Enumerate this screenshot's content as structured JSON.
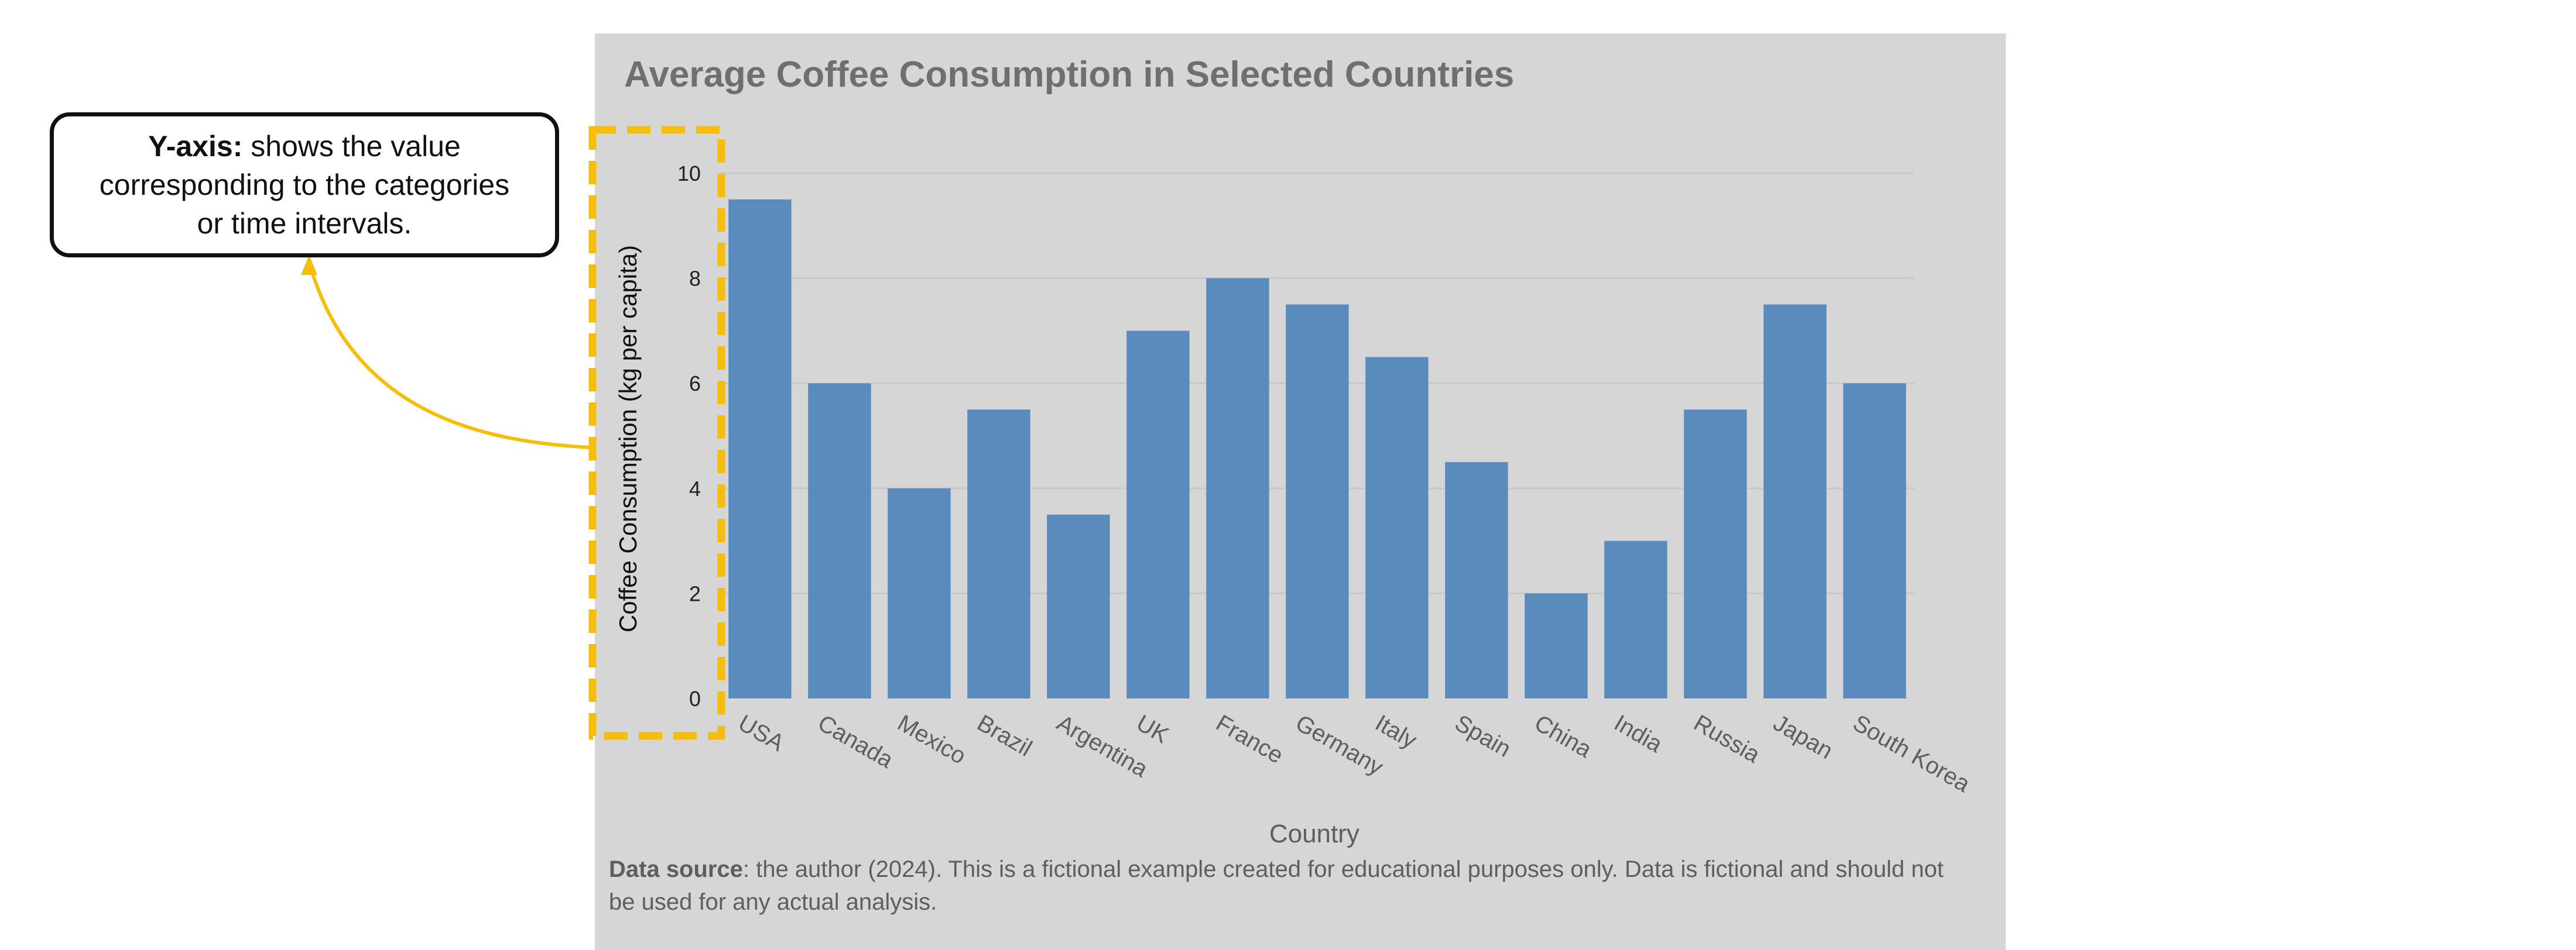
{
  "chart_data": {
    "type": "bar",
    "title": "Average Coffee Consumption in Selected Countries",
    "xlabel": "Country",
    "ylabel": "Coffee Consumption (kg per capita)",
    "categories": [
      "USA",
      "Canada",
      "Mexico",
      "Brazil",
      "Argentina",
      "UK",
      "France",
      "Germany",
      "Italy",
      "Spain",
      "China",
      "India",
      "Russia",
      "Japan",
      "South Korea"
    ],
    "values": [
      9.5,
      6,
      4,
      5.5,
      3.5,
      7,
      8,
      7.5,
      6.5,
      4.5,
      2,
      3,
      5.5,
      7.5,
      6
    ],
    "yticks": [
      0,
      2,
      4,
      6,
      8,
      10
    ],
    "ylim": [
      0,
      10
    ],
    "grid": true,
    "legend": "none",
    "colors": {
      "bar": "#5a8bbd",
      "panel": "#d6d6d6",
      "highlight": "#f5be0b",
      "title": "#6f6f6f"
    }
  },
  "callout": {
    "label": "Y-axis:",
    "text": " shows the value corresponding to the categories or time intervals."
  },
  "source": {
    "label": "Data source",
    "text": ": the author (2024). This is a fictional example created for educational purposes only. Data is fictional and should not be used for any actual analysis."
  }
}
